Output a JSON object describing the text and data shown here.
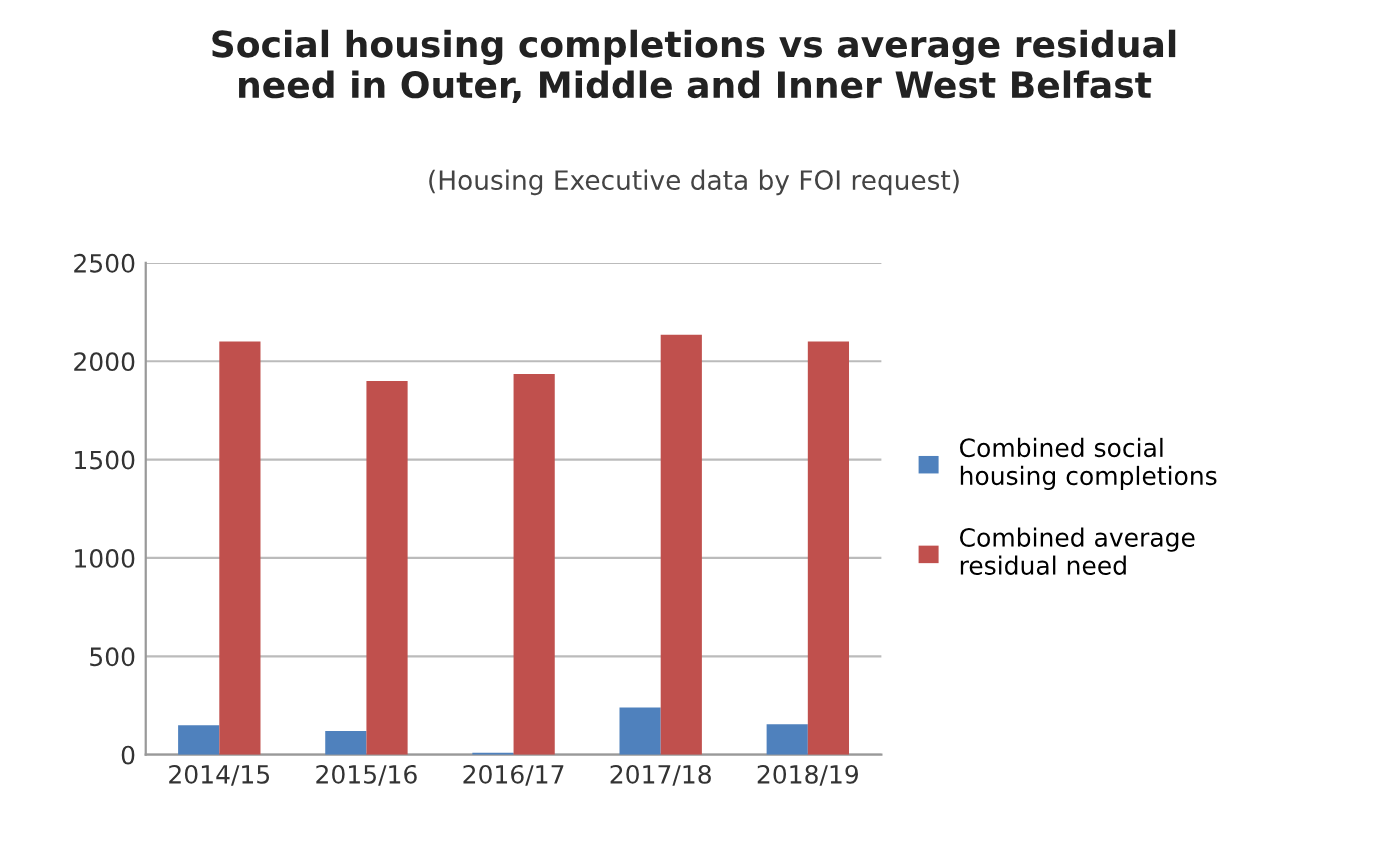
{
  "chart_data": {
    "type": "bar",
    "title": "Social housing completions vs average residual\nneed in Outer, Middle and Inner West Belfast",
    "subtitle": "(Housing Executive data by FOI request)",
    "categories": [
      "2014/15",
      "2015/16",
      "2016/17",
      "2017/18",
      "2018/19"
    ],
    "series": [
      {
        "name": "Combined social housing completions",
        "color": "#4f81bd",
        "values": [
          150,
          120,
          10,
          240,
          155
        ]
      },
      {
        "name": "Combined average residual need",
        "color": "#c0504d",
        "values": [
          2100,
          1900,
          1935,
          2135,
          2100
        ]
      }
    ],
    "ylim": [
      0,
      2500
    ],
    "yticks": [
      0,
      500,
      1000,
      1500,
      2000,
      2500
    ],
    "grid": "y",
    "legend": "right"
  }
}
